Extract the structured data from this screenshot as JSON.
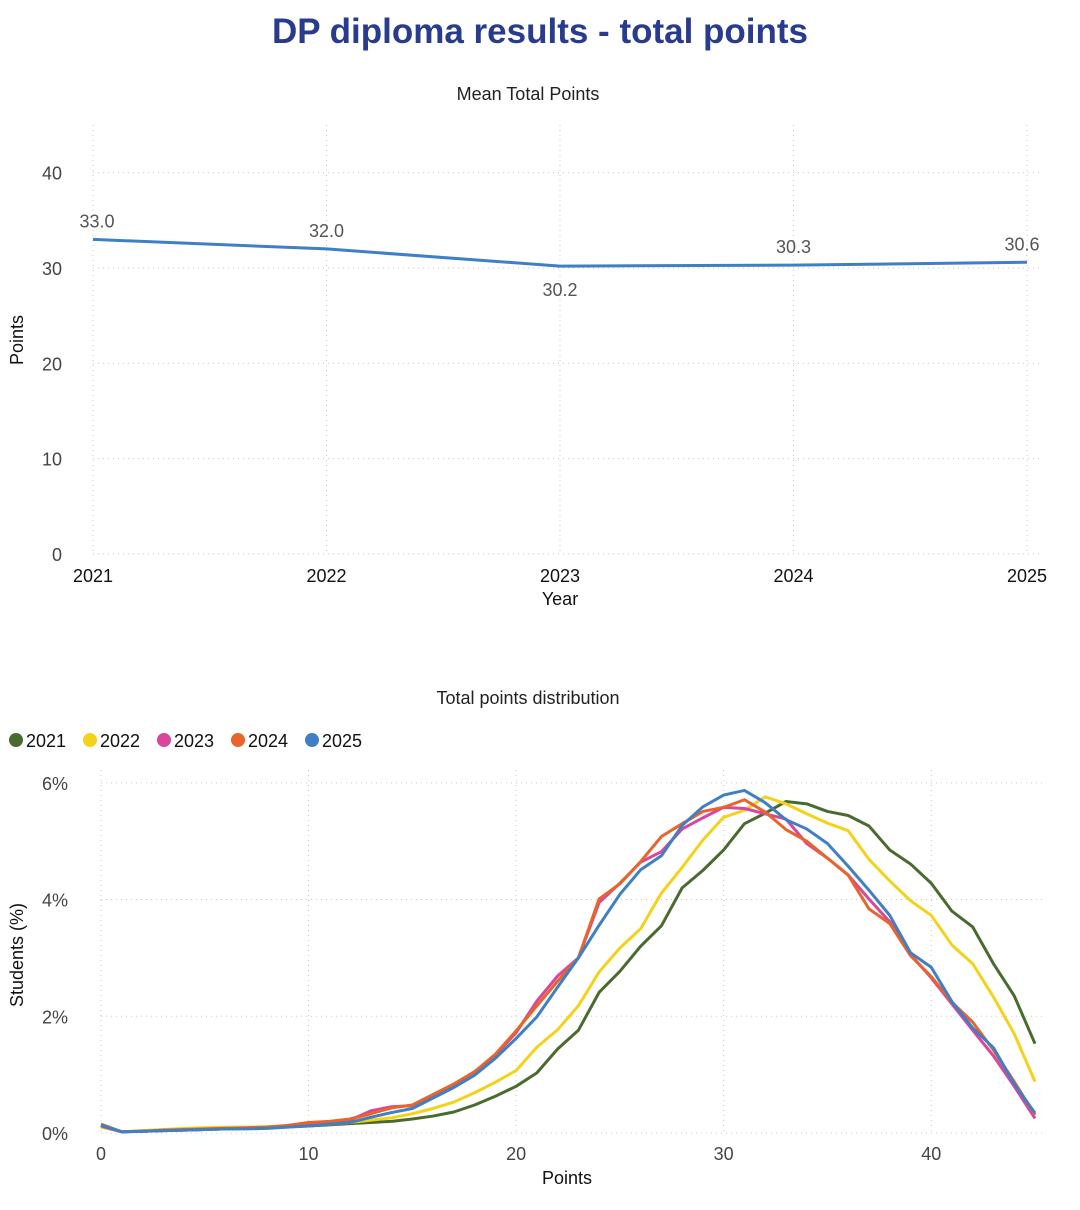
{
  "page_title": "DP diploma results - total points",
  "colors": {
    "title": "#283b8f",
    "mean_line": "#3f7fc4",
    "axis_text": "#444444",
    "grid": "#c8c8c8"
  },
  "chart_data": [
    {
      "type": "line",
      "title": "Mean Total Points",
      "xlabel": "Year",
      "ylabel": "Points",
      "categories": [
        "2021",
        "2022",
        "2023",
        "2024",
        "2025"
      ],
      "series": [
        {
          "values": [
            33.0,
            32.0,
            30.2,
            30.3,
            30.6
          ]
        }
      ],
      "data_labels": [
        "33.0",
        "32.0",
        "30.2",
        "30.3",
        "30.6"
      ],
      "ylim": [
        0,
        45
      ],
      "yticks": [
        "0",
        "10",
        "20",
        "30",
        "40"
      ],
      "grid": true
    },
    {
      "type": "line",
      "title": "Total points distribution",
      "xlabel": "Points",
      "ylabel": "Students (%)",
      "xlim": [
        0,
        45
      ],
      "ylim": [
        0,
        6.1
      ],
      "xticks": [
        "0",
        "10",
        "20",
        "30",
        "40"
      ],
      "yticks": [
        "0%",
        "2%",
        "4%",
        "6%"
      ],
      "legend_position": "top-left",
      "grid": true,
      "series": [
        {
          "name": "2021",
          "color": "#4a6b2f",
          "values": [
            0.15,
            0.02,
            0.03,
            0.04,
            0.05,
            0.06,
            0.07,
            0.08,
            0.09,
            0.11,
            0.12,
            0.14,
            0.16,
            0.18,
            0.2,
            0.24,
            0.29,
            0.36,
            0.48,
            0.63,
            0.8,
            1.03,
            1.44,
            1.76,
            2.41,
            2.77,
            3.2,
            3.55,
            4.2,
            4.5,
            4.85,
            5.3,
            5.48,
            5.68,
            5.64,
            5.51,
            5.44,
            5.26,
            4.85,
            4.61,
            4.28,
            3.8,
            3.53,
            2.9,
            2.35,
            1.53
          ]
        },
        {
          "name": "2022",
          "color": "#f5d21a",
          "values": [
            0.1,
            0.02,
            0.04,
            0.06,
            0.08,
            0.09,
            0.1,
            0.1,
            0.11,
            0.12,
            0.13,
            0.15,
            0.18,
            0.22,
            0.26,
            0.33,
            0.42,
            0.53,
            0.69,
            0.87,
            1.07,
            1.47,
            1.77,
            2.18,
            2.76,
            3.17,
            3.5,
            4.11,
            4.55,
            5.02,
            5.41,
            5.53,
            5.76,
            5.64,
            5.47,
            5.31,
            5.18,
            4.69,
            4.32,
            3.98,
            3.73,
            3.22,
            2.9,
            2.33,
            1.7,
            0.88
          ]
        },
        {
          "name": "2023",
          "color": "#d9479d",
          "values": [
            0.12,
            0.02,
            0.03,
            0.04,
            0.05,
            0.06,
            0.07,
            0.08,
            0.09,
            0.11,
            0.14,
            0.18,
            0.22,
            0.38,
            0.45,
            0.47,
            0.65,
            0.82,
            1.05,
            1.33,
            1.72,
            2.26,
            2.69,
            3.0,
            3.95,
            4.28,
            4.64,
            4.82,
            5.21,
            5.4,
            5.58,
            5.56,
            5.47,
            5.38,
            4.96,
            4.71,
            4.42,
            4.01,
            3.62,
            3.06,
            2.66,
            2.21,
            1.76,
            1.32,
            0.8,
            0.25
          ]
        },
        {
          "name": "2024",
          "color": "#e8642a",
          "values": [
            0.14,
            0.02,
            0.03,
            0.05,
            0.06,
            0.07,
            0.08,
            0.09,
            0.1,
            0.13,
            0.18,
            0.2,
            0.24,
            0.33,
            0.43,
            0.48,
            0.66,
            0.84,
            1.05,
            1.35,
            1.75,
            2.18,
            2.6,
            3.0,
            4.01,
            4.27,
            4.65,
            5.08,
            5.3,
            5.51,
            5.58,
            5.71,
            5.5,
            5.2,
            5.0,
            4.71,
            4.42,
            3.84,
            3.59,
            3.04,
            2.68,
            2.24,
            1.9,
            1.42,
            0.88,
            0.31
          ]
        },
        {
          "name": "2025",
          "color": "#3f7fc4",
          "values": [
            0.13,
            0.02,
            0.03,
            0.04,
            0.05,
            0.06,
            0.07,
            0.07,
            0.08,
            0.1,
            0.12,
            0.15,
            0.18,
            0.27,
            0.35,
            0.42,
            0.6,
            0.78,
            0.99,
            1.28,
            1.62,
            1.99,
            2.5,
            3.0,
            3.56,
            4.09,
            4.51,
            4.75,
            5.27,
            5.59,
            5.79,
            5.87,
            5.66,
            5.37,
            5.21,
            4.96,
            4.57,
            4.16,
            3.73,
            3.09,
            2.84,
            2.25,
            1.8,
            1.46,
            0.84,
            0.34
          ]
        }
      ]
    }
  ]
}
